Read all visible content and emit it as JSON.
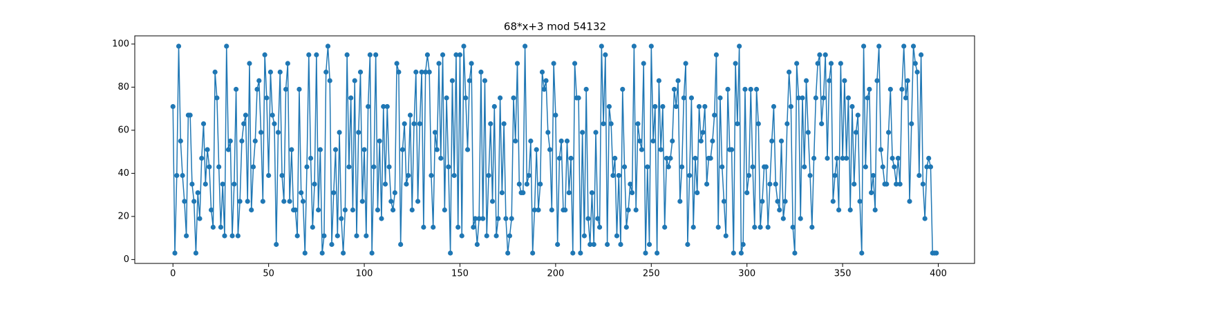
{
  "chart_data": {
    "type": "line",
    "title": "68*x+3 mod 54132",
    "color": "#1f77b4",
    "marker": "o",
    "x": [
      0,
      1,
      2,
      3,
      4,
      5,
      6,
      7,
      8,
      9,
      10,
      11,
      12,
      13,
      14,
      15,
      16,
      17,
      18,
      19,
      20,
      21,
      22,
      23,
      24,
      25,
      26,
      27,
      28,
      29,
      30,
      31,
      32,
      33,
      34,
      35,
      36,
      37,
      38,
      39,
      40,
      41,
      42,
      43,
      44,
      45,
      46,
      47,
      48,
      49,
      50,
      51,
      52,
      53,
      54,
      55,
      56,
      57,
      58,
      59,
      60,
      61,
      62,
      63,
      64,
      65,
      66,
      67,
      68,
      69,
      70,
      71,
      72,
      73,
      74,
      75,
      76,
      77,
      78,
      79,
      80,
      81,
      82,
      83,
      84,
      85,
      86,
      87,
      88,
      89,
      90,
      91,
      92,
      93,
      94,
      95,
      96,
      97,
      98,
      99,
      100,
      101,
      102,
      103,
      104,
      105,
      106,
      107,
      108,
      109,
      110,
      111,
      112,
      113,
      114,
      115,
      116,
      117,
      118,
      119,
      120,
      121,
      122,
      123,
      124,
      125,
      126,
      127,
      128,
      129,
      130,
      131,
      132,
      133,
      134,
      135,
      136,
      137,
      138,
      139,
      140,
      141,
      142,
      143,
      144,
      145,
      146,
      147,
      148,
      149,
      150,
      151,
      152,
      153,
      154,
      155,
      156,
      157,
      158,
      159,
      160,
      161,
      162,
      163,
      164,
      165,
      166,
      167,
      168,
      169,
      170,
      171,
      172,
      173,
      174,
      175,
      176,
      177,
      178,
      179,
      180,
      181,
      182,
      183,
      184,
      185,
      186,
      187,
      188,
      189,
      190,
      191,
      192,
      193,
      194,
      195,
      196,
      197,
      198,
      199,
      200,
      201,
      202,
      203,
      204,
      205,
      206,
      207,
      208,
      209,
      210,
      211,
      212,
      213,
      214,
      215,
      216,
      217,
      218,
      219,
      220,
      221,
      222,
      223,
      224,
      225,
      226,
      227,
      228,
      229,
      230,
      231,
      232,
      233,
      234,
      235,
      236,
      237,
      238,
      239,
      240,
      241,
      242,
      243,
      244,
      245,
      246,
      247,
      248,
      249,
      250,
      251,
      252,
      253,
      254,
      255,
      256,
      257,
      258,
      259,
      260,
      261,
      262,
      263,
      264,
      265,
      266,
      267,
      268,
      269,
      270,
      271,
      272,
      273,
      274,
      275,
      276,
      277,
      278,
      279,
      280,
      281,
      282,
      283,
      284,
      285,
      286,
      287,
      288,
      289,
      290,
      291,
      292,
      293,
      294,
      295,
      296,
      297,
      298,
      299,
      300,
      301,
      302,
      303,
      304,
      305,
      306,
      307,
      308,
      309,
      310,
      311,
      312,
      313,
      314,
      315,
      316,
      317,
      318,
      319,
      320,
      321,
      322,
      323,
      324,
      325,
      326,
      327,
      328,
      329,
      330,
      331,
      332,
      333,
      334,
      335,
      336,
      337,
      338,
      339,
      340,
      341,
      342,
      343,
      344,
      345,
      346,
      347,
      348,
      349,
      350,
      351,
      352,
      353,
      354,
      355,
      356,
      357,
      358,
      359,
      360,
      361,
      362,
      363,
      364,
      365,
      366,
      367,
      368,
      369,
      370,
      371,
      372,
      373,
      374,
      375,
      376,
      377,
      378,
      379,
      380,
      381,
      382,
      383,
      384,
      385,
      386,
      387,
      388,
      389,
      390,
      391,
      392,
      393,
      394,
      395,
      396,
      397,
      398,
      399
    ],
    "values": [
      71,
      3,
      39,
      99,
      55,
      39,
      27,
      11,
      67,
      67,
      35,
      27,
      3,
      31,
      19,
      47,
      63,
      35,
      51,
      43,
      23,
      15,
      87,
      75,
      43,
      15,
      35,
      11,
      99,
      51,
      55,
      11,
      35,
      79,
      11,
      27,
      55,
      63,
      67,
      27,
      91,
      23,
      43,
      55,
      79,
      83,
      59,
      27,
      95,
      75,
      39,
      87,
      67,
      63,
      7,
      59,
      87,
      39,
      27,
      79,
      91,
      27,
      51,
      23,
      23,
      11,
      79,
      31,
      27,
      3,
      43,
      95,
      47,
      15,
      35,
      95,
      23,
      51,
      3,
      11,
      87,
      99,
      83,
      7,
      31,
      51,
      11,
      59,
      19,
      3,
      23,
      95,
      43,
      75,
      23,
      83,
      11,
      59,
      87,
      27,
      51,
      11,
      71,
      95,
      3,
      43,
      95,
      23,
      55,
      19,
      71,
      35,
      71,
      43,
      27,
      23,
      31,
      91,
      87,
      7,
      51,
      63,
      35,
      39,
      67,
      23,
      63,
      87,
      27,
      63,
      87,
      15,
      87,
      95,
      87,
      39,
      15,
      59,
      51,
      91,
      47,
      95,
      23,
      75,
      43,
      3,
      83,
      39,
      95,
      15,
      95,
      11,
      99,
      75,
      51,
      83,
      91,
      15,
      19,
      7,
      19,
      87,
      19,
      83,
      11,
      39,
      63,
      27,
      71,
      11,
      19,
      75,
      31,
      63,
      19,
      3,
      11,
      19,
      75,
      55,
      91,
      35,
      31,
      31,
      99,
      35,
      39,
      55,
      3,
      23,
      51,
      23,
      35,
      87,
      79,
      83,
      59,
      51,
      23,
      91,
      67,
      7,
      47,
      55,
      23,
      23,
      55,
      31,
      47,
      3,
      91,
      75,
      75,
      3,
      59,
      11,
      79,
      19,
      7,
      31,
      7,
      59,
      19,
      15,
      99,
      63,
      95,
      7,
      71,
      63,
      39,
      47,
      11,
      39,
      7,
      79,
      43,
      15,
      23,
      35,
      31,
      99,
      23,
      63,
      55,
      51,
      91,
      3,
      43,
      7,
      99,
      55,
      71,
      3,
      83,
      51,
      71,
      15,
      47,
      43,
      47,
      55,
      79,
      71,
      83,
      27,
      43,
      75,
      91,
      7,
      39,
      75,
      15,
      47,
      31,
      71,
      55,
      59,
      71,
      35,
      47,
      47,
      55,
      67,
      95,
      15,
      75,
      43,
      27,
      11,
      79,
      51,
      51,
      3,
      91,
      63,
      99,
      3,
      7,
      79,
      31,
      39,
      79,
      43,
      15,
      79,
      63,
      15,
      27,
      43,
      43,
      15,
      35,
      55,
      71,
      35,
      27,
      23,
      55,
      19,
      27,
      63,
      87,
      71,
      15,
      3,
      91,
      75,
      19,
      75,
      43,
      83,
      59,
      39,
      15,
      47,
      75,
      91,
      95,
      63,
      75,
      95,
      47,
      83,
      91,
      27,
      39,
      47,
      23,
      91,
      47,
      83,
      47,
      75,
      23,
      71,
      35,
      59,
      67,
      27,
      3,
      99,
      43,
      75,
      79,
      31,
      39,
      23,
      83,
      99,
      51,
      43,
      35,
      35,
      59,
      79,
      47,
      43,
      35,
      47,
      35,
      79,
      99,
      75,
      83,
      27,
      63,
      99,
      91,
      87,
      39,
      95,
      35,
      19,
      43,
      47,
      43,
      3,
      3,
      3
    ],
    "xlim": [
      -19.95,
      418.95
    ],
    "ylim": [
      -1.8,
      103.8
    ],
    "xticks": [
      0,
      50,
      100,
      150,
      200,
      250,
      300,
      350,
      400
    ],
    "yticks": [
      0,
      20,
      40,
      60,
      80,
      100
    ],
    "grid": false
  }
}
